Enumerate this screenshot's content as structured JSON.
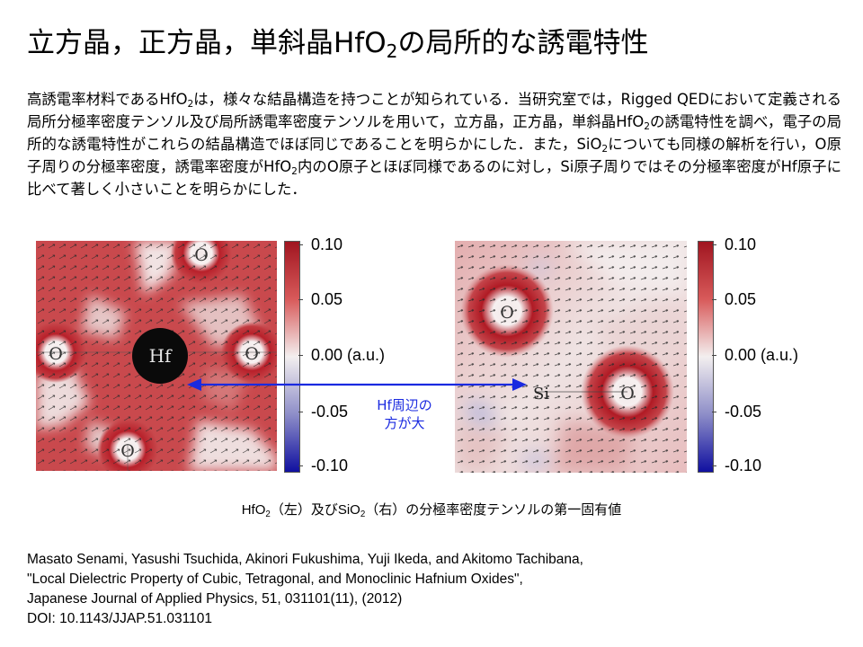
{
  "title": {
    "pre": "立方晶，正方晶，単斜晶HfO",
    "sub": "2",
    "post": "の局所的な誘電特性"
  },
  "abstract": {
    "p1": "高誘電率材料であるHfO",
    "s1": "2",
    "p2": "は，様々な結晶構造を持つことが知られている．当研究室では，Rigged QEDにおいて定義される局所分極率密度テンソル及び局所誘電率密度テンソルを用いて，立方晶，正方晶，単斜晶HfO",
    "s2": "2",
    "p3": "の誘電特性を調べ，電子の局所的な誘電特性がこれらの結晶構造でほぼ同じであることを明らかにした．また，SiO",
    "s3": "2",
    "p4": "についても同様の解析を行い，O原子周りの分極率密度，誘電率密度がHfO",
    "s4": "2",
    "p5": "内のO原子とほぼ同様であるのに対し，Si原子周りではその分極率密度がHf原子に比べて著しく小さいことを明らかにした．"
  },
  "left_map": {
    "atoms": [
      "O",
      "O",
      "O",
      "O",
      "Hf"
    ]
  },
  "right_map": {
    "atoms": [
      "O",
      "O",
      "Si"
    ]
  },
  "colorbar": {
    "ticks": [
      "0.10",
      "0.05",
      "0.00 (a.u.)",
      "-0.05",
      "-0.10"
    ]
  },
  "arrow_label": {
    "line1": "Hf周辺の",
    "line2": "方が大"
  },
  "caption": {
    "a": "HfO",
    "as": "2",
    "b": "（左）及びSiO",
    "bs": "2",
    "c": "（右）の分極率密度テンソルの第一固有値"
  },
  "citation": {
    "authors": "Masato Senami, Yasushi Tsuchida, Akinori Fukushima, Yuji Ikeda, and Akitomo Tachibana,",
    "paper_title": "\"Local Dielectric Property of Cubic, Tetragonal, and Monoclinic Hafnium Oxides\",",
    "journal": "Japanese Journal of Applied Physics, 51, 031101(11), (2012)",
    "doi": "DOI: 10.1143/JJAP.51.031101"
  },
  "colors": {
    "positive": "#a01520",
    "negative": "#1010a0",
    "arrow": "#1a2ae0"
  }
}
